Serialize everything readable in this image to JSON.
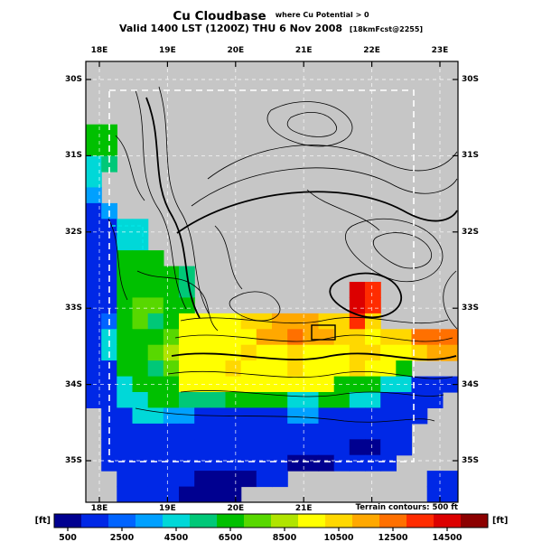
{
  "header": {
    "title": "Cu Cloudbase",
    "title_note": "where Cu Potential > 0",
    "valid": "Valid 1400 LST (1200Z) THU 6 Nov 2008",
    "valid_note": "[18kmFcst@2255]"
  },
  "map": {
    "x_ticks": [
      "18E",
      "19E",
      "20E",
      "21E",
      "22E",
      "23E"
    ],
    "x_ticks_bottom": [
      "18E",
      "19E",
      "20E",
      "21E"
    ],
    "y_ticks_left": [
      "30S",
      "31S",
      "32S",
      "33S",
      "34S",
      "35S"
    ],
    "y_ticks_right": [
      "30S",
      "31S",
      "32S",
      "33S",
      "34S",
      "35S"
    ]
  },
  "terrain_note": "Terrain contours: 500 ft",
  "colorbar": {
    "unit_left": "[ft]",
    "unit_right": "[ft]",
    "min": 0,
    "max": 16000,
    "tick_values": [
      500,
      2500,
      4500,
      6500,
      8500,
      10500,
      12500,
      14500
    ],
    "colors": [
      "#000090",
      "#0028E6",
      "#0064FF",
      "#00A0FF",
      "#00D8D8",
      "#00C878",
      "#00C000",
      "#58D800",
      "#B0E400",
      "#FFFF00",
      "#FFD800",
      "#FFA800",
      "#FF7000",
      "#FF2C00",
      "#DC0000",
      "#8C0000"
    ]
  },
  "chart_data": {
    "type": "heatmap",
    "title": "Cu Cloudbase where Cu Potential > 0",
    "subtitle": "Valid 1400 LST (1200Z) THU 6 Nov 2008 [18kmFcst@2255]",
    "units": "ft",
    "xlabel_ticks": [
      "18E",
      "19E",
      "20E",
      "21E",
      "22E",
      "23E"
    ],
    "ylabel_ticks": [
      "30S",
      "31S",
      "32S",
      "33S",
      "34S",
      "35S"
    ],
    "colorbar_ticks": [
      500,
      2500,
      4500,
      6500,
      8500,
      10500,
      12500,
      14500
    ],
    "colorbar_range": [
      0,
      16000
    ],
    "annotations": [
      "Terrain contours: 500 ft"
    ],
    "no_data_fill": "#c6c6c6",
    "grid": {
      "cols": 24,
      "rows": 28,
      "lon_range": [
        17.8,
        23.27
      ],
      "lat_range": [
        -35.55,
        -29.76
      ],
      "values": [
        [
          null,
          null,
          null,
          null,
          null,
          null,
          null,
          null,
          null,
          null,
          null,
          null,
          null,
          null,
          null,
          null,
          null,
          null,
          null,
          null,
          null,
          null,
          null,
          null
        ],
        [
          null,
          null,
          null,
          null,
          null,
          null,
          null,
          null,
          null,
          null,
          null,
          null,
          null,
          null,
          null,
          null,
          null,
          null,
          null,
          null,
          null,
          null,
          null,
          null
        ],
        [
          null,
          null,
          null,
          null,
          null,
          null,
          null,
          null,
          null,
          null,
          null,
          null,
          null,
          null,
          null,
          null,
          null,
          null,
          null,
          null,
          null,
          null,
          null,
          null
        ],
        [
          null,
          null,
          null,
          null,
          null,
          null,
          null,
          null,
          null,
          null,
          null,
          null,
          null,
          null,
          null,
          null,
          null,
          null,
          null,
          null,
          null,
          null,
          null,
          null
        ],
        [
          6500,
          6500,
          null,
          null,
          null,
          null,
          null,
          null,
          null,
          null,
          null,
          null,
          null,
          null,
          null,
          null,
          null,
          null,
          null,
          null,
          null,
          null,
          null,
          null
        ],
        [
          6500,
          6500,
          null,
          null,
          null,
          null,
          null,
          null,
          null,
          null,
          null,
          null,
          null,
          null,
          null,
          null,
          null,
          null,
          null,
          null,
          null,
          null,
          null,
          null
        ],
        [
          4500,
          5500,
          null,
          null,
          null,
          null,
          null,
          null,
          null,
          null,
          null,
          null,
          null,
          null,
          null,
          null,
          null,
          null,
          null,
          null,
          null,
          null,
          null,
          null
        ],
        [
          4500,
          null,
          null,
          null,
          null,
          null,
          null,
          null,
          null,
          null,
          null,
          null,
          null,
          null,
          null,
          null,
          null,
          null,
          null,
          null,
          null,
          null,
          null,
          null
        ],
        [
          3500,
          null,
          null,
          null,
          null,
          null,
          null,
          null,
          null,
          null,
          null,
          null,
          null,
          null,
          null,
          null,
          null,
          null,
          null,
          null,
          null,
          null,
          null,
          null
        ],
        [
          1500,
          3500,
          null,
          null,
          null,
          null,
          null,
          null,
          null,
          null,
          null,
          null,
          null,
          null,
          null,
          null,
          null,
          null,
          null,
          null,
          null,
          null,
          null,
          null
        ],
        [
          1500,
          1500,
          4500,
          4500,
          null,
          null,
          null,
          null,
          null,
          null,
          null,
          null,
          null,
          null,
          null,
          null,
          null,
          null,
          null,
          null,
          null,
          null,
          null,
          null
        ],
        [
          1500,
          1500,
          4500,
          4500,
          null,
          null,
          null,
          null,
          null,
          null,
          null,
          null,
          null,
          null,
          null,
          null,
          null,
          null,
          null,
          null,
          null,
          null,
          null,
          null
        ],
        [
          1500,
          1500,
          6500,
          6500,
          6500,
          null,
          null,
          null,
          null,
          null,
          null,
          null,
          null,
          null,
          null,
          null,
          null,
          null,
          null,
          null,
          null,
          null,
          null,
          null
        ],
        [
          1500,
          1500,
          6500,
          6500,
          6500,
          6500,
          5500,
          null,
          null,
          null,
          null,
          null,
          null,
          null,
          null,
          null,
          null,
          null,
          null,
          null,
          null,
          null,
          null,
          null
        ],
        [
          1500,
          1500,
          6500,
          6500,
          6500,
          6500,
          5500,
          null,
          null,
          null,
          null,
          null,
          null,
          null,
          null,
          null,
          null,
          14500,
          13500,
          null,
          null,
          null,
          null,
          null
        ],
        [
          1500,
          1500,
          6500,
          7500,
          7500,
          6500,
          6500,
          null,
          null,
          null,
          null,
          null,
          null,
          null,
          null,
          null,
          null,
          14500,
          13500,
          null,
          null,
          null,
          null,
          null
        ],
        [
          1500,
          2500,
          6500,
          7500,
          5500,
          6500,
          9500,
          9500,
          9500,
          9500,
          10500,
          10500,
          11500,
          11500,
          11500,
          10500,
          10500,
          13500,
          10500,
          null,
          null,
          null,
          null,
          null
        ],
        [
          1500,
          4500,
          6500,
          6500,
          6500,
          7500,
          9500,
          9500,
          9500,
          9500,
          9500,
          11500,
          11500,
          12500,
          11500,
          11500,
          10500,
          10500,
          9500,
          10500,
          10500,
          12500,
          12500,
          12500
        ],
        [
          1500,
          4500,
          6500,
          6500,
          7500,
          8500,
          9500,
          9500,
          9500,
          9500,
          10500,
          9500,
          9500,
          10500,
          9500,
          9500,
          9500,
          10500,
          10500,
          9500,
          9500,
          10500,
          11500,
          11500
        ],
        [
          1500,
          1500,
          6500,
          6500,
          5500,
          7500,
          9500,
          9500,
          9500,
          10500,
          9500,
          9500,
          9500,
          10500,
          9500,
          9500,
          9500,
          10500,
          9500,
          9500,
          6500,
          null,
          null,
          null
        ],
        [
          1500,
          1500,
          4500,
          6500,
          6500,
          6500,
          9500,
          9500,
          9500,
          9500,
          9500,
          9500,
          9500,
          9500,
          9500,
          9500,
          6500,
          6500,
          6500,
          4500,
          4500,
          1500,
          1500,
          1500
        ],
        [
          1500,
          1500,
          4500,
          4500,
          6500,
          6500,
          5500,
          5500,
          5500,
          6500,
          6500,
          6500,
          6500,
          4500,
          4500,
          6500,
          6500,
          4500,
          4500,
          1500,
          1500,
          1500,
          1500,
          null
        ],
        [
          null,
          1500,
          1500,
          4500,
          4500,
          3500,
          3500,
          1500,
          1500,
          1500,
          1500,
          1500,
          1500,
          3500,
          3500,
          1500,
          1500,
          1500,
          1500,
          1500,
          1500,
          1500,
          null,
          null
        ],
        [
          null,
          1500,
          1500,
          1500,
          1500,
          1500,
          1500,
          1500,
          1500,
          1500,
          1500,
          1500,
          1500,
          1500,
          1500,
          1500,
          1500,
          1500,
          1500,
          1500,
          1500,
          null,
          null,
          null
        ],
        [
          null,
          1500,
          1500,
          1500,
          1500,
          1500,
          1500,
          1500,
          1500,
          1500,
          1500,
          1500,
          1500,
          1500,
          1500,
          1500,
          1500,
          500,
          500,
          1500,
          1500,
          null,
          null,
          null
        ],
        [
          null,
          1500,
          1500,
          1500,
          1500,
          1500,
          1500,
          1500,
          1500,
          1500,
          1500,
          1500,
          1500,
          500,
          500,
          500,
          1500,
          1500,
          1500,
          1500,
          null,
          null,
          null,
          null
        ],
        [
          null,
          null,
          1500,
          1500,
          1500,
          1500,
          1500,
          500,
          500,
          500,
          500,
          1500,
          1500,
          null,
          null,
          null,
          null,
          null,
          null,
          null,
          null,
          null,
          1500,
          1500
        ],
        [
          null,
          null,
          1500,
          1500,
          1500,
          1500,
          500,
          500,
          500,
          500,
          null,
          null,
          null,
          null,
          null,
          null,
          null,
          null,
          null,
          null,
          null,
          null,
          1500,
          1500
        ]
      ]
    }
  }
}
